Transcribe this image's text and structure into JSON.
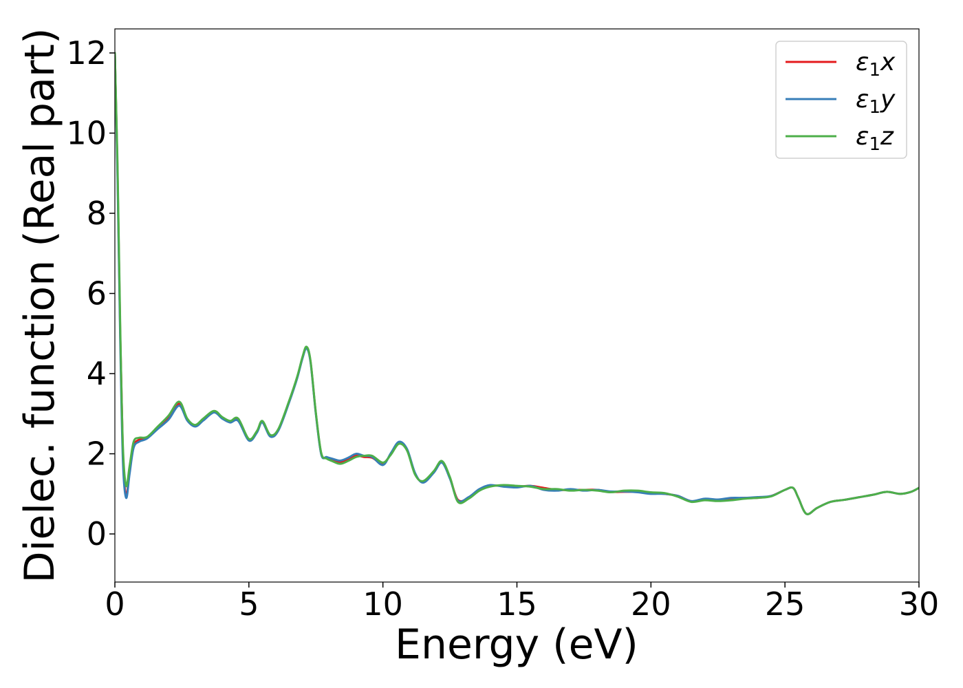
{
  "chart_data": {
    "type": "line",
    "xlabel": "Energy (eV)",
    "ylabel": "Dielec. function (Real part)",
    "xlim": [
      0,
      30
    ],
    "ylim": [
      -1.2,
      12.6
    ],
    "xticks": [
      "0",
      "5",
      "10",
      "15",
      "20",
      "25",
      "30"
    ],
    "yticks": [
      "0",
      "2",
      "4",
      "6",
      "8",
      "10",
      "12"
    ],
    "grid": false,
    "legend_position": "top-right",
    "series": [
      {
        "name": "ε₁x",
        "label_base": "ε",
        "label_sub": "1",
        "label_suffix": "x",
        "color": "#e41a1c",
        "points": [
          [
            0,
            12.0
          ],
          [
            0.1,
            9.0
          ],
          [
            0.2,
            5.0
          ],
          [
            0.3,
            2.0
          ],
          [
            0.42,
            0.95
          ],
          [
            0.55,
            1.6
          ],
          [
            0.7,
            2.2
          ],
          [
            0.9,
            2.35
          ],
          [
            1.2,
            2.4
          ],
          [
            1.6,
            2.65
          ],
          [
            2.0,
            2.9
          ],
          [
            2.4,
            3.25
          ],
          [
            2.7,
            2.85
          ],
          [
            3.0,
            2.7
          ],
          [
            3.3,
            2.85
          ],
          [
            3.7,
            3.05
          ],
          [
            4.0,
            2.9
          ],
          [
            4.3,
            2.8
          ],
          [
            4.6,
            2.85
          ],
          [
            5.0,
            2.35
          ],
          [
            5.3,
            2.55
          ],
          [
            5.5,
            2.8
          ],
          [
            5.8,
            2.45
          ],
          [
            6.1,
            2.6
          ],
          [
            6.5,
            3.3
          ],
          [
            6.8,
            3.9
          ],
          [
            7.0,
            4.4
          ],
          [
            7.15,
            4.65
          ],
          [
            7.3,
            4.3
          ],
          [
            7.5,
            3.0
          ],
          [
            7.7,
            2.0
          ],
          [
            7.9,
            1.9
          ],
          [
            8.1,
            1.85
          ],
          [
            8.4,
            1.8
          ],
          [
            8.7,
            1.85
          ],
          [
            9.0,
            1.95
          ],
          [
            9.3,
            1.92
          ],
          [
            9.6,
            1.9
          ],
          [
            10.0,
            1.75
          ],
          [
            10.3,
            2.0
          ],
          [
            10.6,
            2.28
          ],
          [
            10.9,
            2.1
          ],
          [
            11.2,
            1.5
          ],
          [
            11.5,
            1.3
          ],
          [
            11.9,
            1.55
          ],
          [
            12.2,
            1.8
          ],
          [
            12.5,
            1.4
          ],
          [
            12.8,
            0.85
          ],
          [
            13.2,
            0.9
          ],
          [
            13.6,
            1.1
          ],
          [
            14.0,
            1.2
          ],
          [
            14.5,
            1.2
          ],
          [
            15.0,
            1.18
          ],
          [
            15.5,
            1.2
          ],
          [
            16.0,
            1.15
          ],
          [
            16.5,
            1.1
          ],
          [
            17.0,
            1.1
          ],
          [
            17.5,
            1.1
          ],
          [
            18.0,
            1.1
          ],
          [
            18.5,
            1.05
          ],
          [
            19.0,
            1.05
          ],
          [
            19.5,
            1.05
          ],
          [
            20.0,
            1.02
          ],
          [
            20.5,
            1.0
          ],
          [
            21.0,
            0.95
          ],
          [
            21.5,
            0.82
          ],
          [
            22.0,
            0.85
          ],
          [
            22.5,
            0.85
          ],
          [
            23.0,
            0.88
          ],
          [
            23.5,
            0.9
          ],
          [
            24.0,
            0.9
          ],
          [
            24.5,
            0.95
          ],
          [
            25.0,
            1.1
          ],
          [
            25.3,
            1.15
          ],
          [
            25.5,
            0.9
          ],
          [
            25.8,
            0.5
          ],
          [
            26.2,
            0.65
          ],
          [
            26.7,
            0.8
          ],
          [
            27.2,
            0.85
          ],
          [
            27.8,
            0.92
          ],
          [
            28.3,
            0.98
          ],
          [
            28.8,
            1.05
          ],
          [
            29.3,
            1.0
          ],
          [
            29.7,
            1.05
          ],
          [
            30.0,
            1.15
          ]
        ]
      },
      {
        "name": "ε₁y",
        "label_base": "ε",
        "label_sub": "1",
        "label_suffix": "y",
        "color": "#377eb8",
        "points": [
          [
            0,
            12.0
          ],
          [
            0.1,
            8.8
          ],
          [
            0.2,
            4.8
          ],
          [
            0.3,
            1.8
          ],
          [
            0.42,
            0.9
          ],
          [
            0.55,
            1.5
          ],
          [
            0.7,
            2.15
          ],
          [
            0.9,
            2.3
          ],
          [
            1.2,
            2.38
          ],
          [
            1.6,
            2.62
          ],
          [
            2.0,
            2.85
          ],
          [
            2.4,
            3.2
          ],
          [
            2.7,
            2.83
          ],
          [
            3.0,
            2.68
          ],
          [
            3.3,
            2.83
          ],
          [
            3.7,
            3.03
          ],
          [
            4.0,
            2.88
          ],
          [
            4.3,
            2.78
          ],
          [
            4.6,
            2.82
          ],
          [
            5.0,
            2.33
          ],
          [
            5.3,
            2.53
          ],
          [
            5.5,
            2.78
          ],
          [
            5.8,
            2.43
          ],
          [
            6.1,
            2.58
          ],
          [
            6.5,
            3.28
          ],
          [
            6.8,
            3.88
          ],
          [
            7.0,
            4.38
          ],
          [
            7.15,
            4.63
          ],
          [
            7.3,
            4.28
          ],
          [
            7.5,
            2.98
          ],
          [
            7.7,
            1.98
          ],
          [
            7.9,
            1.92
          ],
          [
            8.1,
            1.88
          ],
          [
            8.4,
            1.83
          ],
          [
            8.7,
            1.9
          ],
          [
            9.0,
            2.0
          ],
          [
            9.3,
            1.95
          ],
          [
            9.6,
            1.92
          ],
          [
            10.0,
            1.72
          ],
          [
            10.3,
            2.02
          ],
          [
            10.6,
            2.3
          ],
          [
            10.9,
            2.12
          ],
          [
            11.2,
            1.52
          ],
          [
            11.5,
            1.28
          ],
          [
            11.9,
            1.53
          ],
          [
            12.2,
            1.78
          ],
          [
            12.5,
            1.38
          ],
          [
            12.8,
            0.83
          ],
          [
            13.2,
            0.92
          ],
          [
            13.6,
            1.12
          ],
          [
            14.0,
            1.22
          ],
          [
            14.5,
            1.18
          ],
          [
            15.0,
            1.16
          ],
          [
            15.5,
            1.2
          ],
          [
            16.0,
            1.1
          ],
          [
            16.5,
            1.08
          ],
          [
            17.0,
            1.12
          ],
          [
            17.5,
            1.08
          ],
          [
            18.0,
            1.1
          ],
          [
            18.5,
            1.06
          ],
          [
            19.0,
            1.06
          ],
          [
            19.5,
            1.04
          ],
          [
            20.0,
            1.0
          ],
          [
            20.5,
            1.0
          ],
          [
            21.0,
            0.95
          ],
          [
            21.5,
            0.82
          ],
          [
            22.0,
            0.88
          ],
          [
            22.5,
            0.86
          ],
          [
            23.0,
            0.9
          ],
          [
            23.5,
            0.9
          ],
          [
            24.0,
            0.92
          ],
          [
            24.5,
            0.95
          ],
          [
            25.0,
            1.1
          ],
          [
            25.3,
            1.15
          ],
          [
            25.5,
            0.9
          ],
          [
            25.8,
            0.5
          ],
          [
            26.2,
            0.65
          ],
          [
            26.7,
            0.8
          ],
          [
            27.2,
            0.85
          ],
          [
            27.8,
            0.92
          ],
          [
            28.3,
            0.98
          ],
          [
            28.8,
            1.05
          ],
          [
            29.3,
            1.0
          ],
          [
            29.7,
            1.05
          ],
          [
            30.0,
            1.15
          ]
        ]
      },
      {
        "name": "ε₁z",
        "label_base": "ε",
        "label_sub": "1",
        "label_suffix": "z",
        "color": "#4daf4a",
        "points": [
          [
            0,
            12.0
          ],
          [
            0.1,
            9.2
          ],
          [
            0.2,
            5.2
          ],
          [
            0.3,
            2.2
          ],
          [
            0.42,
            1.2
          ],
          [
            0.55,
            1.7
          ],
          [
            0.7,
            2.3
          ],
          [
            0.9,
            2.4
          ],
          [
            1.2,
            2.42
          ],
          [
            1.6,
            2.68
          ],
          [
            2.0,
            2.95
          ],
          [
            2.4,
            3.3
          ],
          [
            2.7,
            2.88
          ],
          [
            3.0,
            2.72
          ],
          [
            3.3,
            2.88
          ],
          [
            3.7,
            3.07
          ],
          [
            4.0,
            2.92
          ],
          [
            4.3,
            2.82
          ],
          [
            4.6,
            2.88
          ],
          [
            5.0,
            2.37
          ],
          [
            5.3,
            2.57
          ],
          [
            5.5,
            2.82
          ],
          [
            5.8,
            2.47
          ],
          [
            6.1,
            2.62
          ],
          [
            6.5,
            3.32
          ],
          [
            6.8,
            3.92
          ],
          [
            7.0,
            4.42
          ],
          [
            7.15,
            4.67
          ],
          [
            7.3,
            4.32
          ],
          [
            7.5,
            3.02
          ],
          [
            7.7,
            2.02
          ],
          [
            7.9,
            1.88
          ],
          [
            8.1,
            1.82
          ],
          [
            8.4,
            1.75
          ],
          [
            8.7,
            1.82
          ],
          [
            9.0,
            1.92
          ],
          [
            9.3,
            1.95
          ],
          [
            9.6,
            1.95
          ],
          [
            10.0,
            1.78
          ],
          [
            10.3,
            1.98
          ],
          [
            10.6,
            2.25
          ],
          [
            10.9,
            2.08
          ],
          [
            11.2,
            1.48
          ],
          [
            11.5,
            1.32
          ],
          [
            11.9,
            1.57
          ],
          [
            12.2,
            1.82
          ],
          [
            12.5,
            1.42
          ],
          [
            12.8,
            0.8
          ],
          [
            13.2,
            0.88
          ],
          [
            13.6,
            1.08
          ],
          [
            14.0,
            1.18
          ],
          [
            14.5,
            1.22
          ],
          [
            15.0,
            1.2
          ],
          [
            15.5,
            1.18
          ],
          [
            16.0,
            1.12
          ],
          [
            16.5,
            1.12
          ],
          [
            17.0,
            1.08
          ],
          [
            17.5,
            1.1
          ],
          [
            18.0,
            1.08
          ],
          [
            18.5,
            1.04
          ],
          [
            19.0,
            1.08
          ],
          [
            19.5,
            1.08
          ],
          [
            20.0,
            1.04
          ],
          [
            20.5,
            1.02
          ],
          [
            21.0,
            0.93
          ],
          [
            21.5,
            0.8
          ],
          [
            22.0,
            0.84
          ],
          [
            22.5,
            0.82
          ],
          [
            23.0,
            0.84
          ],
          [
            23.5,
            0.88
          ],
          [
            24.0,
            0.9
          ],
          [
            24.5,
            0.94
          ],
          [
            25.0,
            1.1
          ],
          [
            25.3,
            1.15
          ],
          [
            25.5,
            0.9
          ],
          [
            25.8,
            0.5
          ],
          [
            26.2,
            0.65
          ],
          [
            26.7,
            0.8
          ],
          [
            27.2,
            0.85
          ],
          [
            27.8,
            0.92
          ],
          [
            28.3,
            0.98
          ],
          [
            28.8,
            1.05
          ],
          [
            29.3,
            1.0
          ],
          [
            29.7,
            1.05
          ],
          [
            30.0,
            1.15
          ]
        ]
      }
    ]
  }
}
